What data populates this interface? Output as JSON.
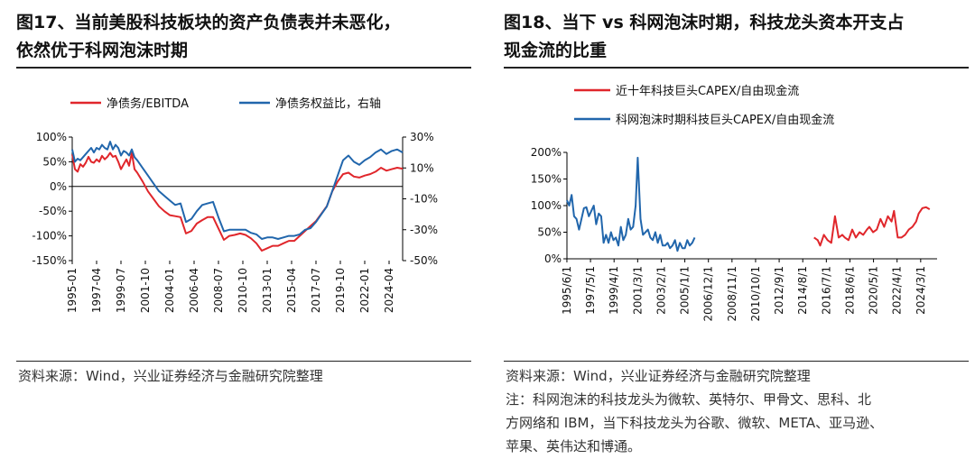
{
  "left": {
    "title_line1": "图17、当前美股科技板块的资产负债表并未恶化，",
    "title_line2": "依然优于科网泡沫时期",
    "source": "资料来源：Wind，兴业证券经济与金融研究院整理"
  },
  "right": {
    "title_line1": "图18、当下 vs 科网泡沫时期，科技龙头资本开支占",
    "title_line2": "现金流的比重",
    "source": "资料来源：Wind，兴业证券经济与金融研究院整理",
    "note_line1": "注：科网泡沫的科技龙头为微软、英特尔、甲骨文、思科、北",
    "note_line2": "方网络和 IBM，当下科技龙头为谷歌、微软、META、亚马逊、",
    "note_line3": "苹果、英伟达和博通。"
  },
  "colors": {
    "red": "#e0262b",
    "blue": "#2166ac"
  },
  "chart_data": [
    {
      "type": "line",
      "title": "",
      "x": [
        1995.0,
        1995.25,
        1995.5,
        1995.75,
        1996.0,
        1996.25,
        1996.5,
        1996.75,
        1997.0,
        1997.25,
        1997.5,
        1997.75,
        1998.0,
        1998.25,
        1998.5,
        1998.75,
        1999.0,
        1999.25,
        1999.5,
        1999.75,
        2000.0,
        2000.25,
        2000.5,
        2000.75,
        2001.0,
        2001.5,
        2002.0,
        2002.5,
        2003.0,
        2003.5,
        2004.0,
        2004.5,
        2005.0,
        2005.5,
        2006.0,
        2006.5,
        2007.0,
        2007.5,
        2008.0,
        2008.5,
        2009.0,
        2009.5,
        2010.0,
        2010.5,
        2011.0,
        2011.5,
        2012.0,
        2012.5,
        2013.0,
        2013.5,
        2014.0,
        2014.5,
        2015.0,
        2015.5,
        2016.0,
        2016.5,
        2017.0,
        2017.5,
        2018.0,
        2018.5,
        2019.0,
        2019.5,
        2020.0,
        2020.5,
        2021.0,
        2021.5,
        2022.0,
        2022.5,
        2023.0,
        2023.5,
        2024.0,
        2024.5,
        2025.0,
        2025.5
      ],
      "x_ticks": [
        "1995-01",
        "1997-04",
        "1999-07",
        "2001-10",
        "2004-01",
        "2006-04",
        "2008-07",
        "2010-10",
        "2013-01",
        "2015-04",
        "2017-07",
        "2019-10",
        "2022-01",
        "2024-04"
      ],
      "series": [
        {
          "name": "净债务/EBITDA",
          "color": "#e0262b",
          "axis": "left",
          "values": [
            65,
            35,
            30,
            45,
            40,
            48,
            60,
            50,
            48,
            55,
            50,
            62,
            55,
            60,
            68,
            60,
            62,
            50,
            35,
            45,
            55,
            42,
            68,
            35,
            28,
            10,
            -10,
            -25,
            -40,
            -50,
            -58,
            -60,
            -62,
            -95,
            -90,
            -75,
            -68,
            -62,
            -62,
            -85,
            -108,
            -100,
            -98,
            -95,
            -98,
            -105,
            -115,
            -130,
            -125,
            -120,
            -120,
            -115,
            -110,
            -110,
            -100,
            -90,
            -80,
            -70,
            -55,
            -40,
            -10,
            10,
            25,
            28,
            20,
            18,
            22,
            25,
            30,
            38,
            32,
            35,
            38,
            36
          ]
        },
        {
          "name": "净债务权益比，右轴",
          "color": "#2166ac",
          "axis": "right",
          "values": [
            22,
            14,
            16,
            15,
            17,
            19,
            21,
            23,
            20,
            23,
            22,
            25,
            23,
            22,
            27,
            22,
            25,
            23,
            18,
            21,
            20,
            18,
            22,
            17,
            15,
            10,
            5,
            0,
            -5,
            -8,
            -11,
            -14,
            -13,
            -25,
            -23,
            -18,
            -14,
            -13,
            -12,
            -22,
            -31,
            -30,
            -30,
            -30,
            -30,
            -32,
            -33,
            -36,
            -35,
            -35,
            -36,
            -35,
            -34,
            -34,
            -33,
            -30,
            -29,
            -25,
            -20,
            -15,
            -5,
            5,
            15,
            18,
            14,
            12,
            15,
            17,
            20,
            22,
            19,
            21,
            22,
            20
          ]
        }
      ],
      "y_left_ticks": [
        "100%",
        "50%",
        "0%",
        "-50%",
        "-100%",
        "-150%"
      ],
      "y_right_ticks": [
        "30%",
        "10%",
        "-10%",
        "-30%",
        "-50%"
      ],
      "ylim_left": [
        -150,
        100
      ],
      "ylim_right": [
        -50,
        30
      ],
      "legend_position": "top",
      "grid": false
    },
    {
      "type": "line",
      "title": "",
      "x_ticks": [
        "1995/6/1",
        "1997/5/1",
        "1999/4/1",
        "2001/3/1",
        "2003/2/1",
        "2005/1/1",
        "2006/12/1",
        "2008/11/1",
        "2010/10/1",
        "2012/9/1",
        "2014/8/1",
        "2016/7/1",
        "2018/6/1",
        "2020/5/1",
        "2022/4/1",
        "2024/3/1"
      ],
      "series": [
        {
          "name": "科网泡沫时期科技巨头CAPEX/自由现金流",
          "color": "#2166ac",
          "x": [
            1995.42,
            1995.6,
            1995.8,
            1996.0,
            1996.2,
            1996.4,
            1996.6,
            1996.8,
            1997.0,
            1997.2,
            1997.4,
            1997.6,
            1997.8,
            1998.0,
            1998.2,
            1998.4,
            1998.6,
            1998.8,
            1999.0,
            1999.2,
            1999.4,
            1999.6,
            1999.8,
            2000.0,
            2000.2,
            2000.4,
            2000.6,
            2000.8,
            2001.0,
            2001.17,
            2001.4,
            2001.6,
            2001.8,
            2002.0,
            2002.2,
            2002.4,
            2002.6,
            2002.8,
            2003.0,
            2003.2,
            2003.4,
            2003.6,
            2003.8,
            2004.0,
            2004.2,
            2004.4,
            2004.6,
            2004.8,
            2005.0,
            2005.2,
            2005.4,
            2005.6,
            2005.8
          ],
          "values": [
            110,
            100,
            120,
            80,
            75,
            55,
            75,
            95,
            97,
            80,
            90,
            100,
            65,
            85,
            80,
            30,
            45,
            30,
            50,
            35,
            40,
            25,
            60,
            35,
            45,
            75,
            55,
            60,
            100,
            190,
            75,
            45,
            50,
            55,
            40,
            35,
            50,
            30,
            45,
            25,
            25,
            30,
            20,
            25,
            35,
            15,
            30,
            20,
            20,
            35,
            25,
            30,
            40
          ]
        },
        {
          "name": "近十年科技巨头CAPEX/自由现金流",
          "color": "#e0262b",
          "x": [
            2015.5,
            2015.8,
            2016.0,
            2016.3,
            2016.6,
            2016.9,
            2017.2,
            2017.5,
            2017.8,
            2018.0,
            2018.3,
            2018.6,
            2018.9,
            2019.2,
            2019.5,
            2019.8,
            2020.0,
            2020.3,
            2020.6,
            2020.9,
            2021.2,
            2021.5,
            2021.8,
            2022.0,
            2022.3,
            2022.6,
            2022.9,
            2023.2,
            2023.5,
            2023.8,
            2024.0,
            2024.3,
            2024.6,
            2024.9
          ],
          "values": [
            40,
            35,
            25,
            45,
            35,
            30,
            80,
            40,
            45,
            40,
            35,
            55,
            40,
            50,
            45,
            55,
            60,
            50,
            55,
            75,
            60,
            80,
            70,
            90,
            40,
            40,
            45,
            55,
            60,
            70,
            85,
            95,
            97,
            93
          ]
        }
      ],
      "y_ticks": [
        "200%",
        "150%",
        "100%",
        "50%",
        "0%"
      ],
      "ylim": [
        0,
        200
      ],
      "xlim": [
        1995.42,
        2025.5
      ],
      "legend_position": "top",
      "grid": false
    }
  ]
}
